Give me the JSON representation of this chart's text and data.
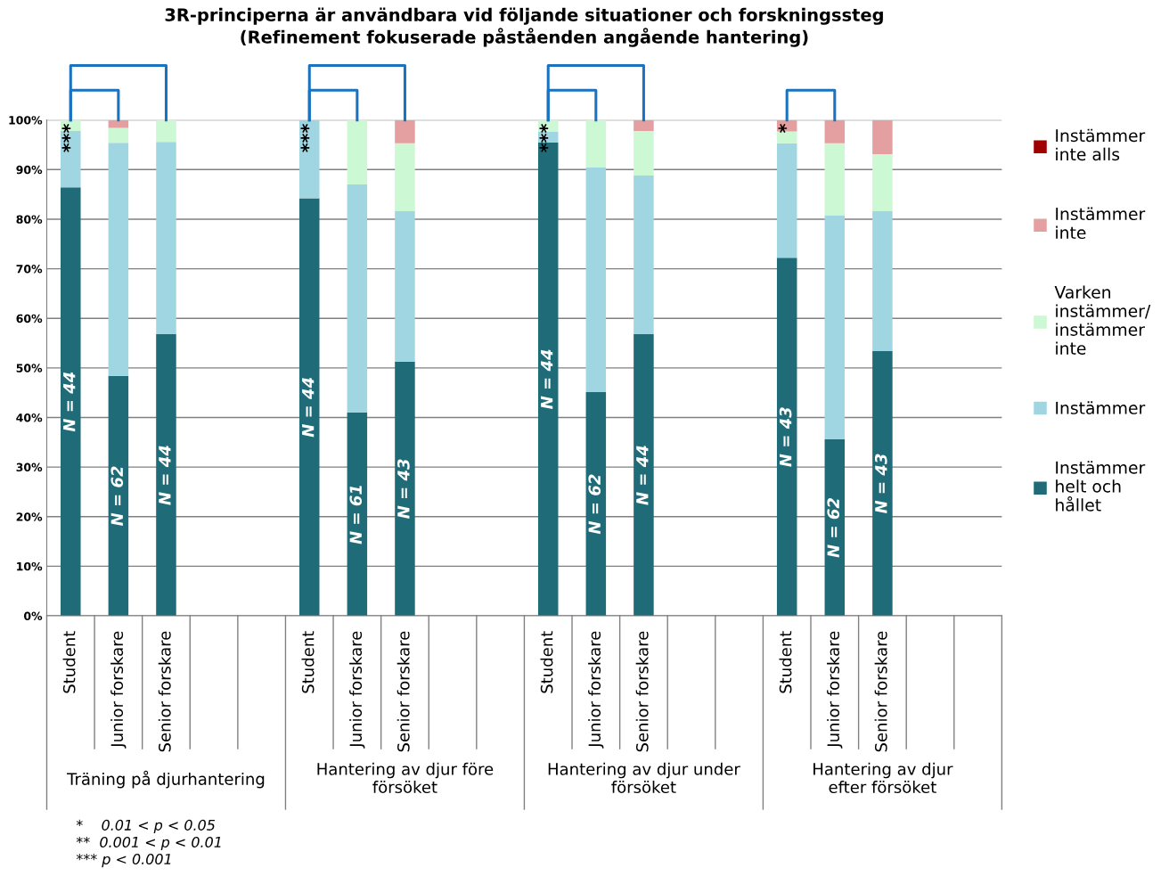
{
  "chart_data": {
    "type": "bar",
    "stacked": true,
    "title": "3R-principerna är användbara vid följande situationer och forskningssteg\n(Refinement fokuserade påståenden angående hantering)",
    "categories": [
      "Student",
      "Junior forskare",
      "Senior forskare",
      null,
      null,
      "Student",
      "Junior forskare",
      "Senior forskare",
      null,
      null,
      "Student",
      "Junior forskare",
      "Senior forskare",
      null,
      null,
      "Student",
      "Junior forskare",
      "Senior forskare",
      null,
      null
    ],
    "series": [
      {
        "name": "Instämmer\nhelt och\nhållet",
        "color": "#1f6b78",
        "values": [
          86.4,
          48.4,
          56.8,
          null,
          null,
          84.2,
          41.0,
          51.3,
          null,
          null,
          95.5,
          45.1,
          56.8,
          null,
          null,
          72.2,
          35.6,
          53.4,
          null,
          null
        ]
      },
      {
        "name": "Instämmer",
        "color": "#a0d6e2",
        "values": [
          11.4,
          47.0,
          38.8,
          null,
          null,
          15.8,
          46.0,
          30.3,
          null,
          null,
          2.2,
          45.3,
          32.0,
          null,
          null,
          23.1,
          45.2,
          28.2,
          null,
          null
        ]
      },
      {
        "name": "Varken\ninstämmer/\ninstämmer\ninte",
        "color": "#ccf8d4",
        "values": [
          2.2,
          3.0,
          4.4,
          null,
          null,
          0,
          13.0,
          13.7,
          null,
          null,
          2.3,
          9.6,
          9.0,
          null,
          null,
          2.4,
          14.5,
          11.5,
          null,
          null
        ]
      },
      {
        "name": "Instämmer\ninte",
        "color": "#e4a0a0",
        "values": [
          0,
          1.6,
          0,
          null,
          null,
          0,
          0,
          4.7,
          null,
          null,
          0,
          0,
          2.2,
          null,
          null,
          2.3,
          4.7,
          6.9,
          null,
          null
        ]
      },
      {
        "name": "Instämmer\ninte alls",
        "color": "#a00000",
        "values": [
          0,
          0,
          0,
          null,
          null,
          0,
          0,
          0,
          null,
          null,
          0,
          0,
          0,
          null,
          null,
          0,
          0,
          0,
          null,
          null
        ]
      }
    ],
    "ylim": [
      0,
      100
    ],
    "yticks": [
      {
        "value": 0,
        "label": "0%"
      },
      {
        "value": 10,
        "label": "10%"
      },
      {
        "value": 20,
        "label": "20%"
      },
      {
        "value": 30,
        "label": "30%"
      },
      {
        "value": 40,
        "label": "40%"
      },
      {
        "value": 50,
        "label": "50%"
      },
      {
        "value": 60,
        "label": "60%"
      },
      {
        "value": 70,
        "label": "70%"
      },
      {
        "value": 80,
        "label": "80%"
      },
      {
        "value": 90,
        "label": "90%"
      },
      {
        "value": 100,
        "label": "100%"
      }
    ],
    "grid": "y",
    "legend": "right",
    "annotations": [
      "Träning på djurhantering",
      "Hantering av djur före\nförsöket",
      "Hantering av djur under\nförsöket",
      "Hantering av djur\nefter försöket",
      "N = 44",
      "N = 62",
      "N = 44",
      "N = 44",
      "N = 61",
      "N = 43",
      "N = 44",
      "N = 62",
      "N = 44",
      "N = 43",
      "N = 62",
      "N = 43",
      "***",
      "***",
      "***",
      "*",
      "*    0.01 < p < 0.05\n**  0.001 < p < 0.01\n*** p < 0.001"
    ]
  }
}
